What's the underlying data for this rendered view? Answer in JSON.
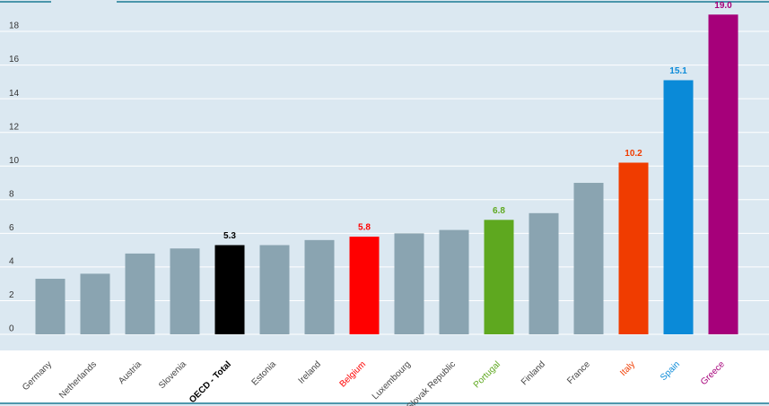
{
  "chart_data": {
    "type": "bar",
    "categories": [
      "Germany",
      "Netherlands",
      "Austria",
      "Slovenia",
      "OECD - Total",
      "Estonia",
      "Ireland",
      "Belgium",
      "Luxembourg",
      "Slovak Republic",
      "Portugal",
      "Finland",
      "France",
      "Italy",
      "Spain",
      "Greece"
    ],
    "values": [
      3.3,
      3.6,
      4.8,
      5.1,
      5.3,
      5.3,
      5.6,
      5.8,
      6.0,
      6.2,
      6.8,
      7.2,
      9.0,
      10.2,
      15.1,
      19.0
    ],
    "value_labels": [
      null,
      null,
      null,
      null,
      "5.3",
      null,
      null,
      "5.8",
      null,
      null,
      "6.8",
      null,
      null,
      "10.2",
      "15.1",
      "19.0"
    ],
    "colors": [
      "#8aa4b1",
      "#8aa4b1",
      "#8aa4b1",
      "#8aa4b1",
      "#000000",
      "#8aa4b1",
      "#8aa4b1",
      "#ff0000",
      "#8aa4b1",
      "#8aa4b1",
      "#5ea81f",
      "#8aa4b1",
      "#8aa4b1",
      "#f03c00",
      "#0a8ad8",
      "#a6007a"
    ],
    "ylim": [
      0,
      19.6
    ],
    "yticks": [
      0,
      2,
      4,
      6,
      8,
      10,
      12,
      14,
      16,
      18
    ],
    "grid": true
  }
}
